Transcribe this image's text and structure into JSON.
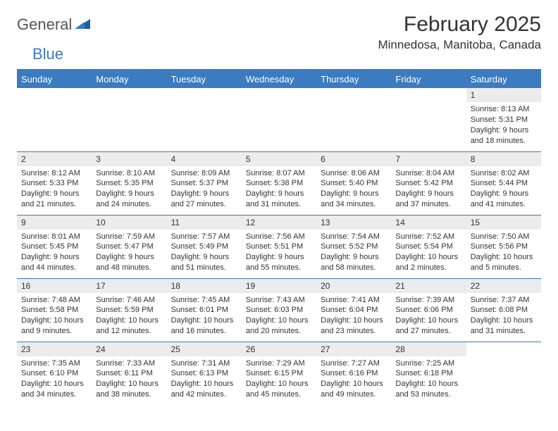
{
  "brand": {
    "part1": "General",
    "part2": "Blue"
  },
  "title": "February 2025",
  "location": "Minnedosa, Manitoba, Canada",
  "colors": {
    "accent": "#3b7bbf",
    "header_row_bg": "#3b7bbf",
    "header_row_text": "#ffffff",
    "day_label_bg": "#ececec",
    "text": "#333333",
    "page_bg": "#ffffff"
  },
  "day_headers": [
    "Sunday",
    "Monday",
    "Tuesday",
    "Wednesday",
    "Thursday",
    "Friday",
    "Saturday"
  ],
  "weeks": [
    [
      {
        "n": "",
        "sr": "",
        "ss": "",
        "dl": ""
      },
      {
        "n": "",
        "sr": "",
        "ss": "",
        "dl": ""
      },
      {
        "n": "",
        "sr": "",
        "ss": "",
        "dl": ""
      },
      {
        "n": "",
        "sr": "",
        "ss": "",
        "dl": ""
      },
      {
        "n": "",
        "sr": "",
        "ss": "",
        "dl": ""
      },
      {
        "n": "",
        "sr": "",
        "ss": "",
        "dl": ""
      },
      {
        "n": "1",
        "sr": "Sunrise: 8:13 AM",
        "ss": "Sunset: 5:31 PM",
        "dl": "Daylight: 9 hours and 18 minutes."
      }
    ],
    [
      {
        "n": "2",
        "sr": "Sunrise: 8:12 AM",
        "ss": "Sunset: 5:33 PM",
        "dl": "Daylight: 9 hours and 21 minutes."
      },
      {
        "n": "3",
        "sr": "Sunrise: 8:10 AM",
        "ss": "Sunset: 5:35 PM",
        "dl": "Daylight: 9 hours and 24 minutes."
      },
      {
        "n": "4",
        "sr": "Sunrise: 8:09 AM",
        "ss": "Sunset: 5:37 PM",
        "dl": "Daylight: 9 hours and 27 minutes."
      },
      {
        "n": "5",
        "sr": "Sunrise: 8:07 AM",
        "ss": "Sunset: 5:38 PM",
        "dl": "Daylight: 9 hours and 31 minutes."
      },
      {
        "n": "6",
        "sr": "Sunrise: 8:06 AM",
        "ss": "Sunset: 5:40 PM",
        "dl": "Daylight: 9 hours and 34 minutes."
      },
      {
        "n": "7",
        "sr": "Sunrise: 8:04 AM",
        "ss": "Sunset: 5:42 PM",
        "dl": "Daylight: 9 hours and 37 minutes."
      },
      {
        "n": "8",
        "sr": "Sunrise: 8:02 AM",
        "ss": "Sunset: 5:44 PM",
        "dl": "Daylight: 9 hours and 41 minutes."
      }
    ],
    [
      {
        "n": "9",
        "sr": "Sunrise: 8:01 AM",
        "ss": "Sunset: 5:45 PM",
        "dl": "Daylight: 9 hours and 44 minutes."
      },
      {
        "n": "10",
        "sr": "Sunrise: 7:59 AM",
        "ss": "Sunset: 5:47 PM",
        "dl": "Daylight: 9 hours and 48 minutes."
      },
      {
        "n": "11",
        "sr": "Sunrise: 7:57 AM",
        "ss": "Sunset: 5:49 PM",
        "dl": "Daylight: 9 hours and 51 minutes."
      },
      {
        "n": "12",
        "sr": "Sunrise: 7:56 AM",
        "ss": "Sunset: 5:51 PM",
        "dl": "Daylight: 9 hours and 55 minutes."
      },
      {
        "n": "13",
        "sr": "Sunrise: 7:54 AM",
        "ss": "Sunset: 5:52 PM",
        "dl": "Daylight: 9 hours and 58 minutes."
      },
      {
        "n": "14",
        "sr": "Sunrise: 7:52 AM",
        "ss": "Sunset: 5:54 PM",
        "dl": "Daylight: 10 hours and 2 minutes."
      },
      {
        "n": "15",
        "sr": "Sunrise: 7:50 AM",
        "ss": "Sunset: 5:56 PM",
        "dl": "Daylight: 10 hours and 5 minutes."
      }
    ],
    [
      {
        "n": "16",
        "sr": "Sunrise: 7:48 AM",
        "ss": "Sunset: 5:58 PM",
        "dl": "Daylight: 10 hours and 9 minutes."
      },
      {
        "n": "17",
        "sr": "Sunrise: 7:46 AM",
        "ss": "Sunset: 5:59 PM",
        "dl": "Daylight: 10 hours and 12 minutes."
      },
      {
        "n": "18",
        "sr": "Sunrise: 7:45 AM",
        "ss": "Sunset: 6:01 PM",
        "dl": "Daylight: 10 hours and 16 minutes."
      },
      {
        "n": "19",
        "sr": "Sunrise: 7:43 AM",
        "ss": "Sunset: 6:03 PM",
        "dl": "Daylight: 10 hours and 20 minutes."
      },
      {
        "n": "20",
        "sr": "Sunrise: 7:41 AM",
        "ss": "Sunset: 6:04 PM",
        "dl": "Daylight: 10 hours and 23 minutes."
      },
      {
        "n": "21",
        "sr": "Sunrise: 7:39 AM",
        "ss": "Sunset: 6:06 PM",
        "dl": "Daylight: 10 hours and 27 minutes."
      },
      {
        "n": "22",
        "sr": "Sunrise: 7:37 AM",
        "ss": "Sunset: 6:08 PM",
        "dl": "Daylight: 10 hours and 31 minutes."
      }
    ],
    [
      {
        "n": "23",
        "sr": "Sunrise: 7:35 AM",
        "ss": "Sunset: 6:10 PM",
        "dl": "Daylight: 10 hours and 34 minutes."
      },
      {
        "n": "24",
        "sr": "Sunrise: 7:33 AM",
        "ss": "Sunset: 6:11 PM",
        "dl": "Daylight: 10 hours and 38 minutes."
      },
      {
        "n": "25",
        "sr": "Sunrise: 7:31 AM",
        "ss": "Sunset: 6:13 PM",
        "dl": "Daylight: 10 hours and 42 minutes."
      },
      {
        "n": "26",
        "sr": "Sunrise: 7:29 AM",
        "ss": "Sunset: 6:15 PM",
        "dl": "Daylight: 10 hours and 45 minutes."
      },
      {
        "n": "27",
        "sr": "Sunrise: 7:27 AM",
        "ss": "Sunset: 6:16 PM",
        "dl": "Daylight: 10 hours and 49 minutes."
      },
      {
        "n": "28",
        "sr": "Sunrise: 7:25 AM",
        "ss": "Sunset: 6:18 PM",
        "dl": "Daylight: 10 hours and 53 minutes."
      },
      {
        "n": "",
        "sr": "",
        "ss": "",
        "dl": ""
      }
    ]
  ]
}
